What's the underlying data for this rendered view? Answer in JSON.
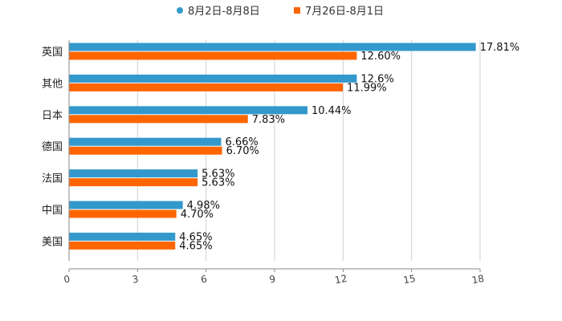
{
  "chart_data": {
    "type": "bar",
    "orientation": "horizontal",
    "title": "",
    "xlabel": "",
    "ylabel": "",
    "xlim": [
      0,
      18
    ],
    "xticks": [
      0,
      3,
      6,
      9,
      12,
      15,
      18
    ],
    "xtick_labels": [
      "0",
      "3",
      "6",
      "9",
      "12",
      "15",
      "18"
    ],
    "grid": true,
    "legend_position": "top-center",
    "categories": [
      "英国",
      "其他",
      "日本",
      "德国",
      "法国",
      "中国",
      "美国"
    ],
    "series": [
      {
        "name": "8月2日-8月8日",
        "color": "#3399cc",
        "values": [
          17.81,
          12.6,
          10.44,
          6.66,
          5.63,
          4.98,
          4.65
        ],
        "labels": [
          "17.81%",
          "12.6%",
          "10.44%",
          "6.66%",
          "5.63%",
          "4.98%",
          "4.65%"
        ]
      },
      {
        "name": "7月26日-8月1日",
        "color": "#ff6600",
        "values": [
          12.6,
          11.99,
          7.83,
          6.7,
          5.63,
          4.7,
          4.65
        ],
        "labels": [
          "12.60%",
          "11.99%",
          "7.83%",
          "6.70%",
          "5.63%",
          "4.70%",
          "4.65%"
        ]
      }
    ]
  },
  "colors": {
    "grid": "#d0d0d0",
    "axis": "#888888"
  }
}
